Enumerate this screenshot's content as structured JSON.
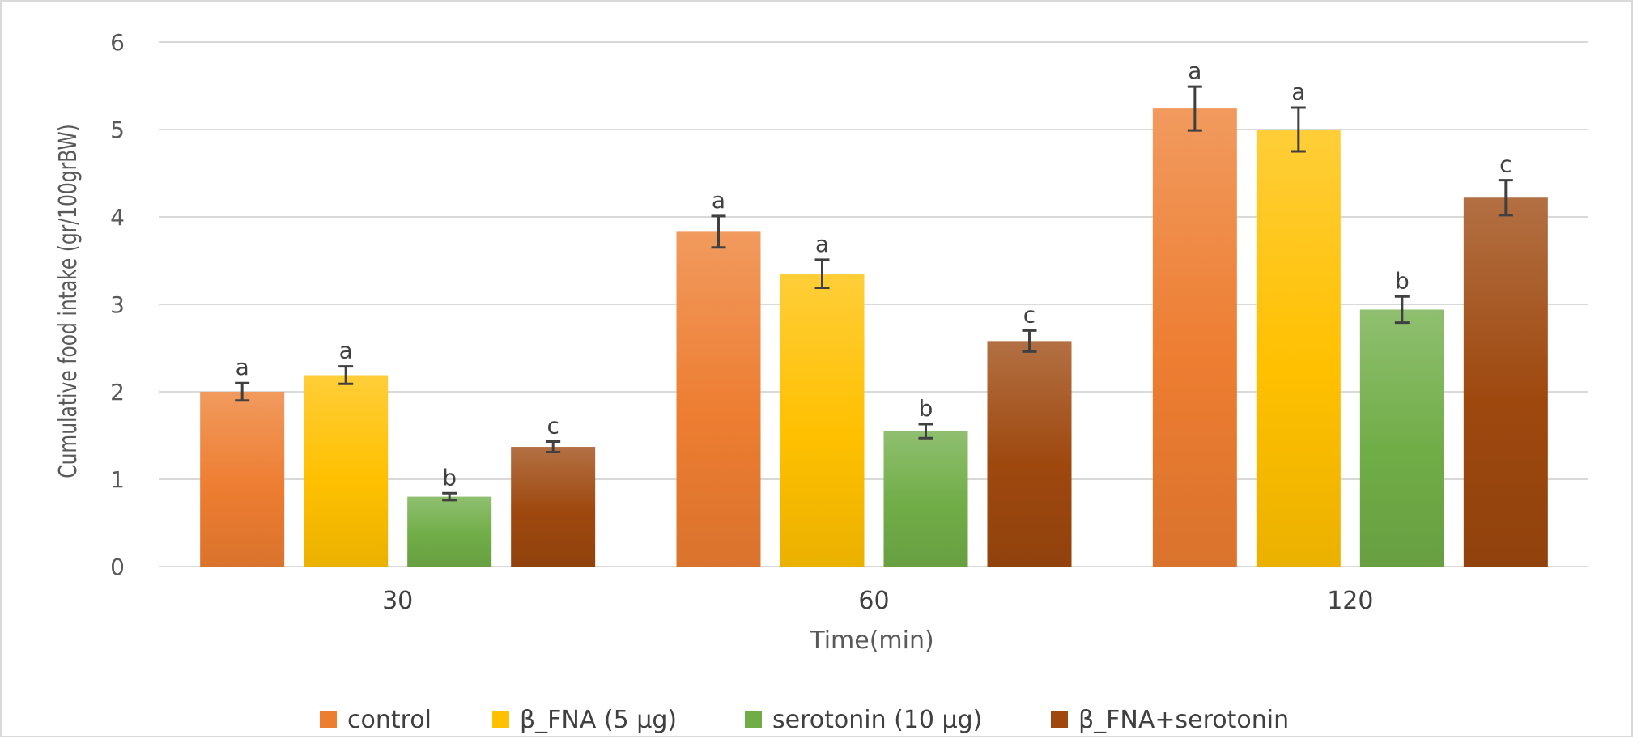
{
  "chart_data": {
    "type": "bar",
    "title": "",
    "xlabel": "Time(min)",
    "ylabel": "Cumulative food intake (gr/100grBW)",
    "categories": [
      "30",
      "60",
      "120"
    ],
    "ylim": [
      0,
      6
    ],
    "yticks": [
      0,
      1,
      2,
      3,
      4,
      5,
      6
    ],
    "grid": true,
    "legend_position": "bottom",
    "series": [
      {
        "name": "control",
        "color": "#ED7D31",
        "values": [
          2.0,
          3.83,
          5.24
        ],
        "errors": [
          0.1,
          0.18,
          0.25
        ],
        "labels": [
          "a",
          "a",
          "a"
        ]
      },
      {
        "name": "β_FNA (5 µg)",
        "color": "#FFC000",
        "values": [
          2.19,
          3.35,
          5.0
        ],
        "errors": [
          0.1,
          0.16,
          0.25
        ],
        "labels": [
          "a",
          "a",
          "a"
        ]
      },
      {
        "name": "serotonin (10 µg)",
        "color": "#70AD47",
        "values": [
          0.8,
          1.55,
          2.94
        ],
        "errors": [
          0.04,
          0.08,
          0.15
        ],
        "labels": [
          "b",
          "b",
          "b"
        ]
      },
      {
        "name": "β_FNA+serotonin",
        "color": "#9E480E",
        "values": [
          1.37,
          2.58,
          4.22
        ],
        "errors": [
          0.06,
          0.12,
          0.2
        ],
        "labels": [
          "c",
          "c",
          "c"
        ]
      }
    ]
  }
}
